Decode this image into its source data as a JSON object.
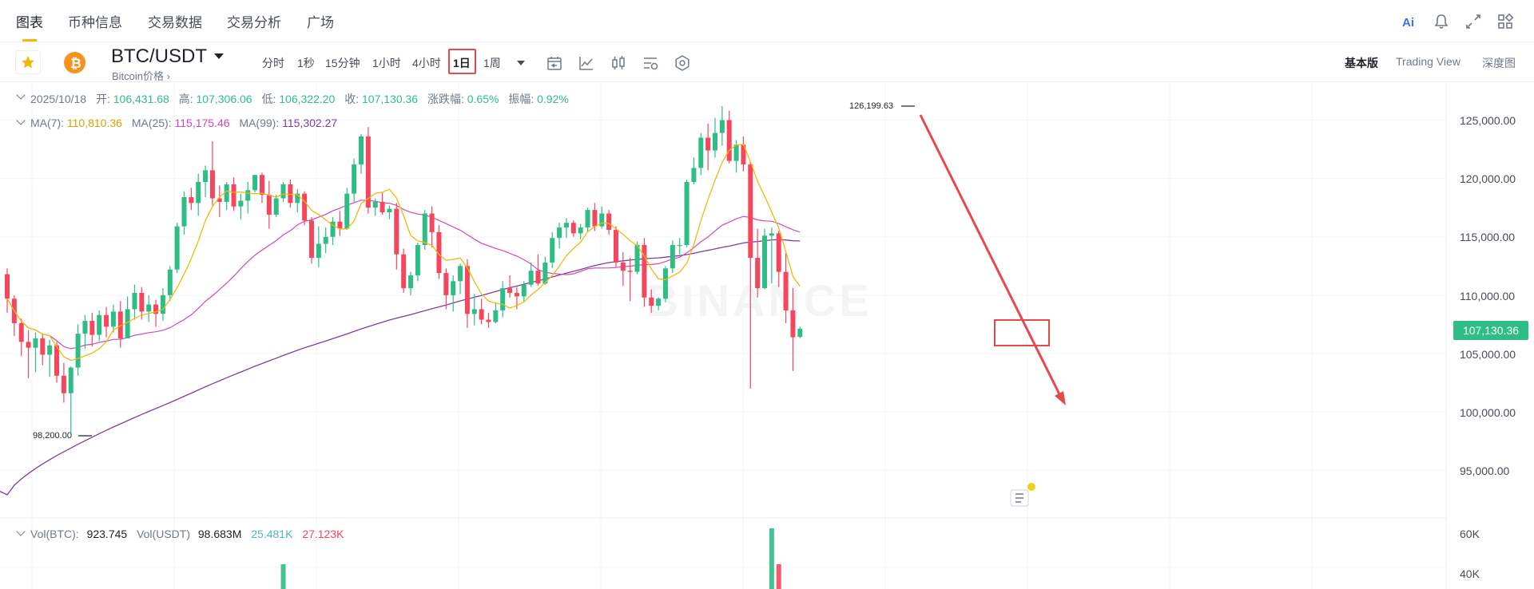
{
  "nav": {
    "tabs": [
      "图表",
      "币种信息",
      "交易数据",
      "交易分析",
      "广场"
    ],
    "active_tab": "图表",
    "icons": [
      "ai-icon",
      "bell-icon",
      "expand-icon",
      "layout-grid-icon"
    ]
  },
  "toolbar": {
    "pair": "BTC/USDT",
    "pair_sub": "Bitcoin价格",
    "intervals": [
      "分时",
      "1秒",
      "15分钟",
      "1小时",
      "4小时",
      "1日",
      "1周"
    ],
    "active_interval": "1日",
    "tool_icons": [
      "calendar-icon",
      "line-chart-icon",
      "candle-icon",
      "indicator-settings-icon",
      "settings-gear-icon"
    ],
    "views": [
      "基本版",
      "Trading View",
      "深度图"
    ],
    "active_view": "基本版"
  },
  "ohlc": {
    "date": "2025/10/18",
    "open_label": "开:",
    "open": "106,431.68",
    "high_label": "高:",
    "high": "107,306.06",
    "low_label": "低:",
    "low": "106,322.20",
    "close_label": "收:",
    "close": "107,130.36",
    "change_label": "涨跌幅:",
    "change": "0.65%",
    "amplitude_label": "振幅:",
    "amplitude": "0.92%"
  },
  "ma": {
    "ma7_label": "MA(7):",
    "ma7": "110,810.36",
    "ma25_label": "MA(25):",
    "ma25": "115,175.46",
    "ma99_label": "MA(99):",
    "ma99": "115,302.27"
  },
  "volume": {
    "btc_label": "Vol(BTC):",
    "btc": "923.745",
    "usdt_label": "Vol(USDT)",
    "usdt": "98.683M",
    "v1": "25.481K",
    "v2": "27.123K"
  },
  "price_axis": [
    "125,000.00",
    "120,000.00",
    "115,000.00",
    "110,000.00",
    "105,000.00",
    "100,000.00",
    "95,000.00"
  ],
  "volume_axis": [
    "60K",
    "40K"
  ],
  "current_price": "107,130.36",
  "high_mark": "126,199.63",
  "low_mark": "98,200.00",
  "watermark": "BINANCE",
  "colors": {
    "up": "#2ebd85",
    "down": "#f6465d",
    "ma7": "#f0b90b",
    "ma25": "#d447b7",
    "ma99": "#7b3fa0",
    "annotation": "#e5484d"
  },
  "chart_data": {
    "type": "candlestick",
    "ylim": [
      91000,
      128000
    ],
    "candles": [
      [
        111800,
        112300,
        108500,
        109700
      ],
      [
        109700,
        110000,
        106500,
        107600
      ],
      [
        107600,
        108000,
        104800,
        106000
      ],
      [
        106000,
        107000,
        102900,
        105500
      ],
      [
        105500,
        106800,
        103400,
        106300
      ],
      [
        106300,
        106700,
        104000,
        104900
      ],
      [
        104900,
        106200,
        103000,
        105700
      ],
      [
        105700,
        106000,
        102500,
        103100
      ],
      [
        103100,
        104200,
        100800,
        101600
      ],
      [
        101600,
        103900,
        98200,
        103800
      ],
      [
        103800,
        107500,
        103100,
        106700
      ],
      [
        106700,
        108300,
        105400,
        107800
      ],
      [
        107800,
        108500,
        105600,
        106600
      ],
      [
        106600,
        108700,
        106100,
        108300
      ],
      [
        108300,
        109000,
        106400,
        107300
      ],
      [
        107300,
        109200,
        106800,
        108600
      ],
      [
        108600,
        109500,
        105500,
        106300
      ],
      [
        106300,
        109900,
        106300,
        108800
      ],
      [
        108800,
        110900,
        107900,
        110200
      ],
      [
        110200,
        110700,
        107900,
        108600
      ],
      [
        108600,
        110000,
        107700,
        109200
      ],
      [
        109200,
        109600,
        107300,
        108400
      ],
      [
        108400,
        110600,
        107800,
        110000
      ],
      [
        110000,
        112500,
        109500,
        112200
      ],
      [
        112200,
        116200,
        111900,
        115900
      ],
      [
        115900,
        118900,
        115200,
        118400
      ],
      [
        118400,
        119200,
        117300,
        117900
      ],
      [
        117900,
        120400,
        116800,
        119700
      ],
      [
        119700,
        121100,
        118400,
        120700
      ],
      [
        120700,
        123200,
        117700,
        118300
      ],
      [
        118300,
        119400,
        116700,
        118000
      ],
      [
        118000,
        119700,
        117300,
        119500
      ],
      [
        119500,
        120100,
        117200,
        117600
      ],
      [
        117600,
        118700,
        116500,
        118100
      ],
      [
        118100,
        119700,
        117000,
        119000
      ],
      [
        119000,
        120300,
        118800,
        120300
      ],
      [
        120300,
        120500,
        117900,
        118600
      ],
      [
        118600,
        119800,
        115700,
        116900
      ],
      [
        116900,
        118600,
        116700,
        118300
      ],
      [
        118300,
        119700,
        118000,
        119500
      ],
      [
        119500,
        119900,
        117500,
        117900
      ],
      [
        117900,
        119100,
        117100,
        118700
      ],
      [
        118700,
        118900,
        116000,
        116400
      ],
      [
        116400,
        116700,
        112700,
        113200
      ],
      [
        113200,
        115900,
        112400,
        114400
      ],
      [
        114400,
        115800,
        113600,
        115000
      ],
      [
        115000,
        116700,
        114300,
        116300
      ],
      [
        116300,
        117200,
        115100,
        115700
      ],
      [
        115700,
        119200,
        115600,
        118700
      ],
      [
        118700,
        121700,
        118000,
        121200
      ],
      [
        121200,
        123800,
        120400,
        123600
      ],
      [
        123600,
        124400,
        117000,
        117500
      ],
      [
        117500,
        118300,
        116800,
        118000
      ],
      [
        118000,
        118800,
        116900,
        117100
      ],
      [
        117100,
        117700,
        116500,
        117400
      ],
      [
        117400,
        117900,
        112200,
        113500
      ],
      [
        113500,
        114000,
        110200,
        110600
      ],
      [
        110600,
        112000,
        110000,
        111700
      ],
      [
        111700,
        114500,
        111200,
        114300
      ],
      [
        114300,
        117300,
        113900,
        117000
      ],
      [
        117000,
        117600,
        114100,
        115400
      ],
      [
        115400,
        116000,
        111400,
        111900
      ],
      [
        111900,
        112300,
        108800,
        110000
      ],
      [
        110000,
        111700,
        108600,
        111200
      ],
      [
        111200,
        112700,
        110100,
        112500
      ],
      [
        112500,
        113100,
        107200,
        108400
      ],
      [
        108400,
        110100,
        107400,
        108800
      ],
      [
        108800,
        109700,
        107500,
        107900
      ],
      [
        107900,
        108500,
        107200,
        107700
      ],
      [
        107700,
        109400,
        107600,
        108700
      ],
      [
        108700,
        111200,
        108100,
        110600
      ],
      [
        110600,
        111700,
        109800,
        110200
      ],
      [
        110200,
        110700,
        108800,
        109900
      ],
      [
        109900,
        111200,
        109400,
        110900
      ],
      [
        110900,
        112800,
        110700,
        112100
      ],
      [
        112100,
        113500,
        110800,
        111000
      ],
      [
        111000,
        113300,
        110900,
        112800
      ],
      [
        112800,
        115400,
        112300,
        114900
      ],
      [
        114900,
        116200,
        114000,
        115800
      ],
      [
        115800,
        116600,
        114900,
        116200
      ],
      [
        116200,
        116400,
        115000,
        115300
      ],
      [
        115300,
        116100,
        114800,
        115800
      ],
      [
        115800,
        117500,
        115400,
        117300
      ],
      [
        117300,
        117900,
        115500,
        115900
      ],
      [
        115900,
        117600,
        115700,
        117000
      ],
      [
        117000,
        117300,
        115200,
        115600
      ],
      [
        115600,
        115900,
        112400,
        112800
      ],
      [
        112800,
        113700,
        110800,
        112100
      ],
      [
        112100,
        113200,
        109500,
        112000
      ],
      [
        112000,
        114600,
        111800,
        114300
      ],
      [
        114300,
        114900,
        109000,
        109800
      ],
      [
        109800,
        110500,
        108500,
        109100
      ],
      [
        109100,
        109800,
        108700,
        109700
      ],
      [
        109700,
        112500,
        109400,
        112300
      ],
      [
        112300,
        114700,
        111900,
        114300
      ],
      [
        114300,
        114900,
        113500,
        114300
      ],
      [
        114300,
        119900,
        114100,
        119700
      ],
      [
        119700,
        121800,
        119500,
        120900
      ],
      [
        120900,
        123900,
        120300,
        123500
      ],
      [
        123500,
        124700,
        120700,
        122400
      ],
      [
        122400,
        125200,
        121800,
        123900
      ],
      [
        123900,
        126199,
        122800,
        125000
      ],
      [
        125000,
        125800,
        121300,
        121500
      ],
      [
        121500,
        123300,
        120500,
        122900
      ],
      [
        122900,
        123600,
        120600,
        121200
      ],
      [
        121200,
        121500,
        102000,
        113200
      ],
      [
        113200,
        115700,
        109800,
        110600
      ],
      [
        110600,
        115700,
        110500,
        115100
      ],
      [
        115100,
        115800,
        111000,
        115300
      ],
      [
        115300,
        115500,
        110700,
        112000
      ],
      [
        112000,
        113600,
        107600,
        108700
      ],
      [
        108700,
        110600,
        103500,
        106400
      ],
      [
        106431,
        107306,
        106322,
        107130
      ]
    ]
  }
}
